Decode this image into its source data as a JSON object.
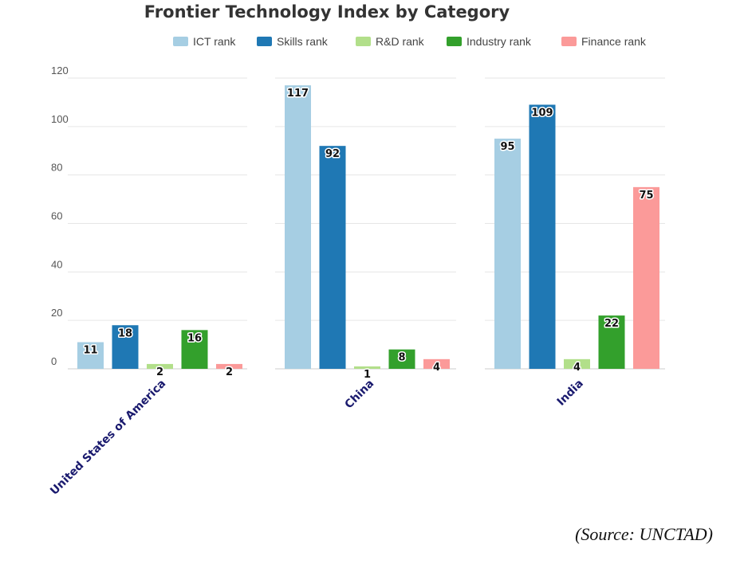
{
  "chart_data": {
    "type": "bar",
    "title": "Frontier Technology Index by Category",
    "categories": [
      "United States of America",
      "China",
      "India"
    ],
    "series": [
      {
        "name": "ICT rank",
        "color": "#a6cee3",
        "values": [
          11,
          117,
          95
        ]
      },
      {
        "name": "Skills rank",
        "color": "#1f78b4",
        "values": [
          18,
          92,
          109
        ]
      },
      {
        "name": "R&D rank",
        "color": "#b2df8a",
        "values": [
          2,
          1,
          4
        ]
      },
      {
        "name": "Industry rank",
        "color": "#33a02c",
        "values": [
          16,
          8,
          22
        ]
      },
      {
        "name": "Finance rank",
        "color": "#fb9a99",
        "values": [
          2,
          4,
          75
        ]
      }
    ],
    "xlabel": "",
    "ylabel": "",
    "ylim": [
      0,
      120
    ],
    "yticks": [
      "0",
      "20",
      "40",
      "60",
      "80",
      "100",
      "120"
    ],
    "grid": true,
    "legend_position": "top",
    "faceted": true
  },
  "source": "(Source: UNCTAD)"
}
